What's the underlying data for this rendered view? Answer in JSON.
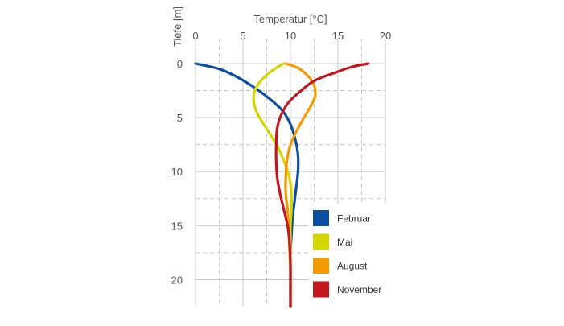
{
  "chart_data": {
    "type": "line",
    "title": "",
    "xlabel": "Temperatur [°C]",
    "ylabel": "Tiefe [m]",
    "x_axis_position": "top",
    "y_inverted": true,
    "xlim": [
      0,
      20
    ],
    "ylim": [
      0,
      22.5
    ],
    "xticks": [
      0,
      5,
      10,
      15,
      20
    ],
    "yticks": [
      0,
      5,
      10,
      15,
      20
    ],
    "grid": true,
    "legend_position": "bottom-right",
    "series": [
      {
        "name": "Februar",
        "color": "#0b4ea2",
        "points": [
          [
            0,
            0
          ],
          [
            2.5,
            0.5
          ],
          [
            4.5,
            1.3
          ],
          [
            6.5,
            2.4
          ],
          [
            8,
            3.4
          ],
          [
            9.2,
            4.4
          ],
          [
            10,
            5.6
          ],
          [
            10.5,
            7
          ],
          [
            10.8,
            8.5
          ],
          [
            10.8,
            10
          ],
          [
            10.6,
            11.5
          ],
          [
            10.4,
            13
          ],
          [
            10.2,
            14.5
          ],
          [
            10.1,
            16
          ],
          [
            10,
            17.5
          ],
          [
            10,
            19.5
          ],
          [
            10,
            22.5
          ]
        ]
      },
      {
        "name": "Mai",
        "color": "#d4d600",
        "points": [
          [
            9.3,
            0
          ],
          [
            8.5,
            0.4
          ],
          [
            7.3,
            1.2
          ],
          [
            6.4,
            2.2
          ],
          [
            6.1,
            3.2
          ],
          [
            6.4,
            4.4
          ],
          [
            7.1,
            5.5
          ],
          [
            7.9,
            6.6
          ],
          [
            8.7,
            7.8
          ],
          [
            9.4,
            9.2
          ],
          [
            9.9,
            10.6
          ],
          [
            10.1,
            12
          ],
          [
            10.1,
            13.5
          ],
          [
            10,
            15
          ],
          [
            10,
            17
          ],
          [
            10,
            19.5
          ],
          [
            10,
            22.5
          ]
        ]
      },
      {
        "name": "August",
        "color": "#f39a00",
        "points": [
          [
            9.5,
            0
          ],
          [
            10.8,
            0.4
          ],
          [
            11.9,
            1.2
          ],
          [
            12.5,
            2
          ],
          [
            12.6,
            3
          ],
          [
            12.1,
            4
          ],
          [
            11.3,
            5.2
          ],
          [
            10.5,
            6.5
          ],
          [
            9.9,
            7.8
          ],
          [
            9.6,
            9.2
          ],
          [
            9.5,
            10.6
          ],
          [
            9.5,
            12
          ],
          [
            9.7,
            13.5
          ],
          [
            9.8,
            15
          ],
          [
            9.9,
            17
          ],
          [
            10,
            19.5
          ],
          [
            10,
            22.5
          ]
        ]
      },
      {
        "name": "November",
        "color": "#c4161c",
        "points": [
          [
            18.2,
            0
          ],
          [
            16.5,
            0.3
          ],
          [
            14.5,
            0.9
          ],
          [
            12.5,
            1.6
          ],
          [
            11,
            2.6
          ],
          [
            9.8,
            3.6
          ],
          [
            9,
            4.8
          ],
          [
            8.6,
            6
          ],
          [
            8.5,
            7.5
          ],
          [
            8.5,
            9
          ],
          [
            8.6,
            10.5
          ],
          [
            8.9,
            12
          ],
          [
            9.3,
            13.5
          ],
          [
            9.7,
            15
          ],
          [
            9.9,
            16.5
          ],
          [
            10,
            18.5
          ],
          [
            10,
            20.5
          ],
          [
            10,
            22.5
          ]
        ]
      }
    ]
  }
}
